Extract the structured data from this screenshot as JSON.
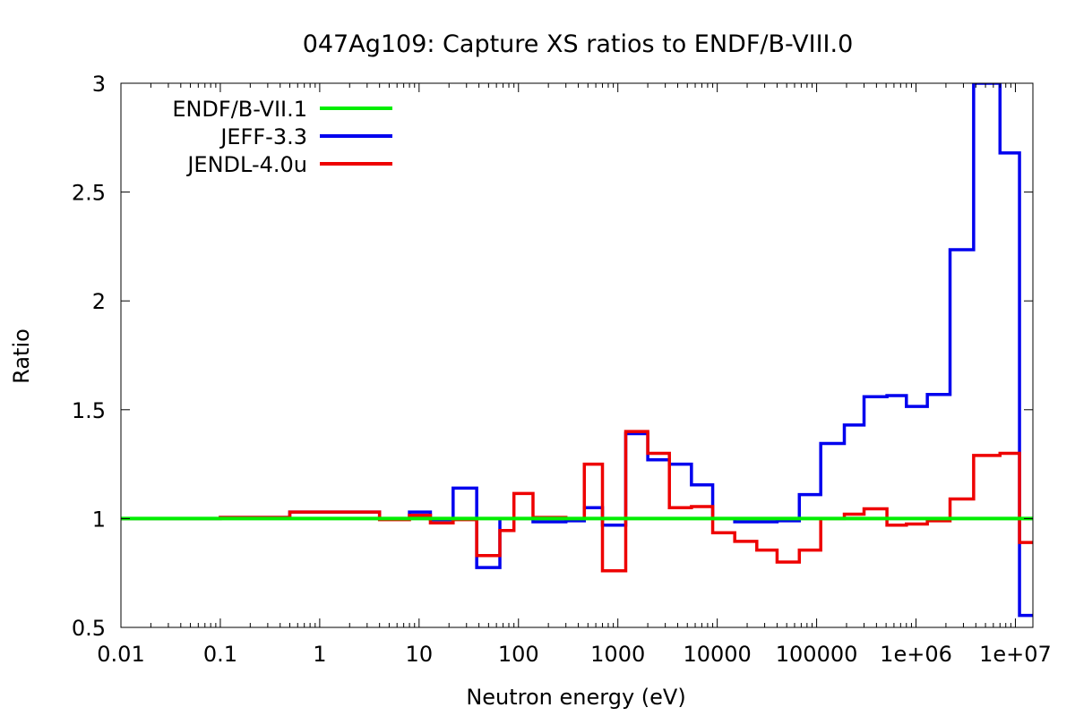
{
  "chart_data": {
    "type": "line",
    "title": "047Ag109: Capture XS ratios to ENDF/B-VIII.0",
    "xlabel": "Neutron energy (eV)",
    "ylabel": "Ratio",
    "x_scale": "log",
    "xlim": [
      0.01,
      15000000
    ],
    "ylim": [
      0.5,
      3
    ],
    "x_ticks": [
      0.01,
      0.1,
      1,
      10,
      100,
      1000,
      10000,
      100000,
      1000000,
      10000000
    ],
    "x_tick_labels": [
      "0.01",
      "0.1",
      "1",
      "10",
      "100",
      "1000",
      "10000",
      "100000",
      "1e+06",
      "1e+07"
    ],
    "y_ticks": [
      0.5,
      1,
      1.5,
      2,
      2.5,
      3
    ],
    "y_tick_labels": [
      "0.5",
      "1",
      "1.5",
      "2",
      "2.5",
      "3"
    ],
    "grid": false,
    "legend_position": "top-left",
    "step_style": "histogram",
    "series": [
      {
        "name": "ENDF/B-VII.1",
        "color": "#00ee00",
        "x": [
          0.01,
          15000000
        ],
        "y": [
          1.0,
          1.0
        ]
      },
      {
        "name": "JEFF-3.3",
        "color": "#0000ee",
        "x": [
          0.01,
          0.1,
          0.5,
          4,
          8,
          13,
          22,
          38,
          65,
          140,
          300,
          460,
          700,
          1200,
          2000,
          3300,
          5500,
          9000,
          15000,
          40000,
          67000,
          110000,
          190000,
          300000,
          510000,
          800000,
          1300000,
          2200000,
          3800000,
          7000000,
          11000000,
          15000000
        ],
        "y": [
          1.0,
          1.005,
          1.03,
          1.0,
          1.03,
          0.995,
          1.14,
          0.775,
          1.0,
          0.985,
          0.99,
          1.05,
          0.97,
          1.39,
          1.27,
          1.25,
          1.155,
          1.0,
          0.985,
          0.99,
          1.11,
          1.345,
          1.43,
          1.56,
          1.565,
          1.515,
          1.57,
          2.235,
          3.0,
          2.68,
          0.555,
          0.555
        ]
      },
      {
        "name": "JENDL-4.0u",
        "color": "#ee0000",
        "x": [
          0.01,
          0.1,
          0.5,
          4,
          8,
          13,
          22,
          38,
          65,
          90,
          140,
          300,
          460,
          700,
          1200,
          2000,
          3300,
          5500,
          9000,
          15000,
          25000,
          40000,
          67000,
          110000,
          190000,
          300000,
          510000,
          800000,
          1300000,
          2200000,
          3800000,
          7000000,
          11000000,
          15000000
        ],
        "y": [
          1.0,
          1.005,
          1.03,
          0.995,
          1.015,
          0.98,
          0.995,
          0.83,
          0.945,
          1.115,
          1.005,
          1.0,
          1.25,
          0.76,
          1.4,
          1.3,
          1.05,
          1.055,
          0.935,
          0.895,
          0.855,
          0.8,
          0.855,
          1.0,
          1.02,
          1.045,
          0.97,
          0.975,
          0.99,
          1.09,
          1.29,
          1.3,
          0.89,
          0.89
        ]
      }
    ]
  }
}
